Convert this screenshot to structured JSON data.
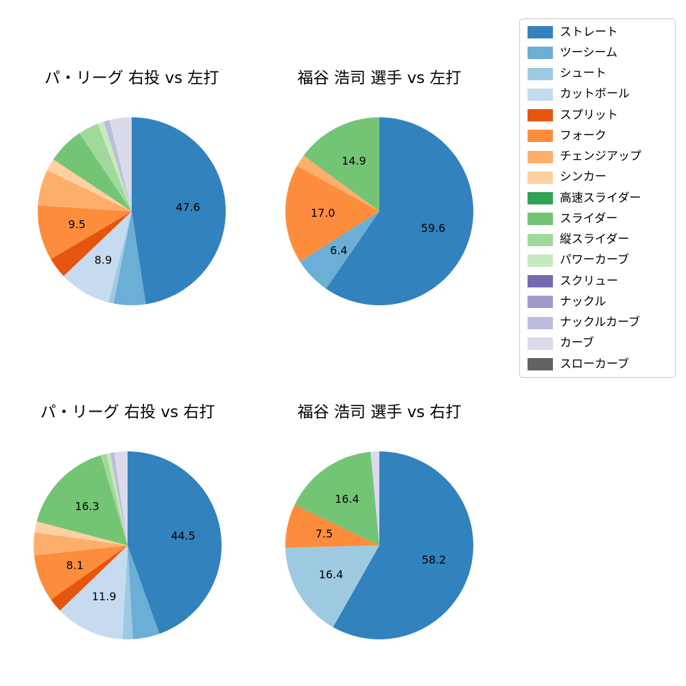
{
  "figure": {
    "background": "#ffffff"
  },
  "legend": {
    "items": [
      {
        "label": "ストレート",
        "color": "#3182bd"
      },
      {
        "label": "ツーシーム",
        "color": "#6baed6"
      },
      {
        "label": "シュート",
        "color": "#9ecae1"
      },
      {
        "label": "カットボール",
        "color": "#c6dbef"
      },
      {
        "label": "スプリット",
        "color": "#e6550d"
      },
      {
        "label": "フォーク",
        "color": "#fd8d3c"
      },
      {
        "label": "チェンジアップ",
        "color": "#fdae6b"
      },
      {
        "label": "シンカー",
        "color": "#fdd0a2"
      },
      {
        "label": "高速スライダー",
        "color": "#31a354"
      },
      {
        "label": "スライダー",
        "color": "#74c476"
      },
      {
        "label": "縦スライダー",
        "color": "#a1d99b"
      },
      {
        "label": "パワーカーブ",
        "color": "#c7e9c0"
      },
      {
        "label": "スクリュー",
        "color": "#756bb1"
      },
      {
        "label": "ナックル",
        "color": "#9e9ac8"
      },
      {
        "label": "ナックルカーブ",
        "color": "#bcbddc"
      },
      {
        "label": "カーブ",
        "color": "#dadaeb"
      },
      {
        "label": "スローカーブ",
        "color": "#636363"
      }
    ]
  },
  "chart_data": [
    {
      "type": "pie",
      "title": "パ・リーグ 右投 vs 左打",
      "start_angle": "top",
      "direction": "clockwise",
      "slices": [
        {
          "pitch": "ストレート",
          "value": 47.6,
          "labeled": true
        },
        {
          "pitch": "ツーシーム",
          "value": 5.5,
          "labeled": false
        },
        {
          "pitch": "シュート",
          "value": 0.9,
          "labeled": false
        },
        {
          "pitch": "カットボール",
          "value": 8.9,
          "labeled": true
        },
        {
          "pitch": "スプリット",
          "value": 3.6,
          "labeled": false
        },
        {
          "pitch": "フォーク",
          "value": 9.5,
          "labeled": true
        },
        {
          "pitch": "チェンジアップ",
          "value": 6.2,
          "labeled": false
        },
        {
          "pitch": "シンカー",
          "value": 2.1,
          "labeled": false
        },
        {
          "pitch": "スライダー",
          "value": 6.3,
          "labeled": false
        },
        {
          "pitch": "縦スライダー",
          "value": 3.5,
          "labeled": false
        },
        {
          "pitch": "パワーカーブ",
          "value": 1.1,
          "labeled": false
        },
        {
          "pitch": "ナックルカーブ",
          "value": 1.0,
          "labeled": false
        },
        {
          "pitch": "カーブ",
          "value": 3.8,
          "labeled": false
        }
      ]
    },
    {
      "type": "pie",
      "title": "福谷 浩司 選手 vs 左打",
      "start_angle": "top",
      "direction": "clockwise",
      "slices": [
        {
          "pitch": "ストレート",
          "value": 59.6,
          "labeled": true
        },
        {
          "pitch": "ツーシーム",
          "value": 6.4,
          "labeled": true
        },
        {
          "pitch": "フォーク",
          "value": 17.0,
          "labeled": true
        },
        {
          "pitch": "チェンジアップ",
          "value": 2.1,
          "labeled": false
        },
        {
          "pitch": "スライダー",
          "value": 14.9,
          "labeled": true
        }
      ]
    },
    {
      "type": "pie",
      "title": "パ・リーグ 右投 vs 右打",
      "start_angle": "top",
      "direction": "clockwise",
      "slices": [
        {
          "pitch": "ストレート",
          "value": 44.5,
          "labeled": true
        },
        {
          "pitch": "ツーシーム",
          "value": 4.6,
          "labeled": false
        },
        {
          "pitch": "シュート",
          "value": 1.8,
          "labeled": false
        },
        {
          "pitch": "カットボール",
          "value": 11.9,
          "labeled": true
        },
        {
          "pitch": "スプリット",
          "value": 2.4,
          "labeled": false
        },
        {
          "pitch": "フォーク",
          "value": 8.1,
          "labeled": true
        },
        {
          "pitch": "チェンジアップ",
          "value": 3.9,
          "labeled": false
        },
        {
          "pitch": "シンカー",
          "value": 1.9,
          "labeled": false
        },
        {
          "pitch": "スライダー",
          "value": 16.3,
          "labeled": true
        },
        {
          "pitch": "縦スライダー",
          "value": 1.0,
          "labeled": false
        },
        {
          "pitch": "パワーカーブ",
          "value": 0.6,
          "labeled": false
        },
        {
          "pitch": "ナックルカーブ",
          "value": 0.7,
          "labeled": false
        },
        {
          "pitch": "カーブ",
          "value": 2.3,
          "labeled": false
        }
      ]
    },
    {
      "type": "pie",
      "title": "福谷 浩司 選手 vs 右打",
      "start_angle": "top",
      "direction": "clockwise",
      "slices": [
        {
          "pitch": "ストレート",
          "value": 58.2,
          "labeled": true
        },
        {
          "pitch": "シュート",
          "value": 16.4,
          "labeled": true
        },
        {
          "pitch": "フォーク",
          "value": 7.5,
          "labeled": true
        },
        {
          "pitch": "スライダー",
          "value": 16.4,
          "labeled": true
        },
        {
          "pitch": "カーブ",
          "value": 1.5,
          "labeled": false
        }
      ]
    }
  ]
}
